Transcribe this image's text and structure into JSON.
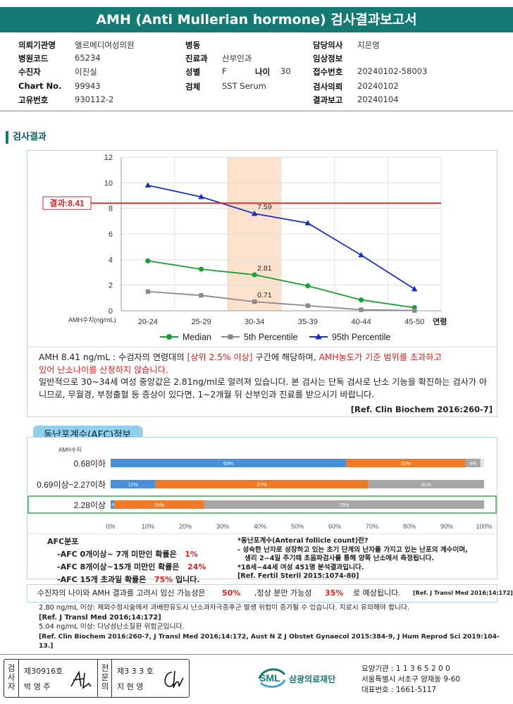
{
  "report": {
    "title": "AMH (Anti Mullerian hormone) 검사결과보고서"
  },
  "info": {
    "institution_label": "의뢰기관명",
    "institution": "엘르메디여성의원",
    "hospital_code_label": "병원코드",
    "hospital_code": "65234",
    "patient_label": "수진자",
    "patient": "이진실",
    "chart_label": "Chart No.",
    "chart_no": "99943",
    "unique_label": "고유번호",
    "unique_no": "930112-2",
    "ward_label": "병동",
    "ward": "",
    "dept_label": "진료과",
    "dept": "산부인과",
    "sex_label": "성별",
    "sex": "F",
    "age_label": "나이",
    "age": "30",
    "specimen_label": "검체",
    "specimen": "SST Serum",
    "doctor_label": "담당의사",
    "doctor": "지은영",
    "clinical_label": "임상정보",
    "clinical": "",
    "receipt_label": "접수번호",
    "receipt_no": "20240102-58003",
    "request_label": "검사의뢰",
    "request_date": "20240102",
    "result_label": "결과보고",
    "result_date": "20240104"
  },
  "results": {
    "section_title": "검사결과"
  },
  "chart_data": {
    "type": "line",
    "categories": [
      "20-24",
      "25-29",
      "30-34",
      "35-39",
      "40-44",
      "45-50"
    ],
    "x_axis_suffix": "연령",
    "y_unit_label": "AMH수치(ng/mL)",
    "ylim": [
      0,
      12
    ],
    "yticks": [
      0,
      2,
      4,
      6,
      8,
      10,
      12
    ],
    "grid": true,
    "legend_position": "bottom",
    "highlight_category": "30-34",
    "result_line": {
      "value": 8.41,
      "label": "결과:8.41",
      "color": "#dd2222"
    },
    "series": [
      {
        "name": "Median",
        "values": [
          3.9,
          3.25,
          2.81,
          1.95,
          0.85,
          0.25
        ],
        "color": "#1aa03a",
        "marker": "circle",
        "label_index": 2,
        "label": "2.81"
      },
      {
        "name": "5th Percentile",
        "values": [
          1.5,
          1.2,
          0.71,
          0.4,
          0.08,
          0.02
        ],
        "color": "#8a8a8a",
        "marker": "square",
        "label_index": 2,
        "label": "0.71"
      },
      {
        "name": "95th Percentile",
        "values": [
          9.8,
          8.9,
          7.59,
          6.85,
          4.35,
          1.7
        ],
        "color": "#1a2fbf",
        "marker": "triangle",
        "label_index": 2,
        "label": "7.59"
      }
    ]
  },
  "interpretation": {
    "line1_prefix": "AMH  8.41 ng/mL : 수검자의 연령대의 ",
    "line1_red1": "[상위 2.5% 이상]",
    "line1_mid": " 구간에 해당하며, ",
    "line1_red2": "AMH농도가 기준 범위를 초과하고",
    "line2_red": "있어 난소나이를 산정하지 않습니다.",
    "para2": "일반적으로 30~34세 여성 중앙값은 2.81ng/ml로 알려져 있습니다. 본 검사는 단독 검사로 난소 기능을 확진하는 검사가 아니므로, 무월경, 부정출혈 등 증상이 있다면, 1~2개월 뒤 산부인과 진료를 받으시기 바랍니다.",
    "ref": "[Ref. Clin Biochem 2016:260-7]"
  },
  "afc": {
    "badge": "동난포계수(AFC)정보",
    "amh_label": "AMH수치",
    "rows": [
      {
        "label": "0.68이하",
        "segments": [
          {
            "value": 63,
            "label": "63%",
            "color": "#4a90d9"
          },
          {
            "value": 32,
            "label": "32%",
            "color": "#f07a26"
          },
          {
            "value": 4,
            "label": "4%",
            "color": "#a6a6a6"
          }
        ]
      },
      {
        "label": "0.69이상~2.27이하",
        "segments": [
          {
            "value": 12,
            "label": "12%",
            "color": "#4a90d9"
          },
          {
            "value": 57,
            "label": "57%",
            "color": "#f07a26"
          },
          {
            "value": 31,
            "label": "31%",
            "color": "#a6a6a6"
          }
        ]
      },
      {
        "label": "2.28이상",
        "segments": [
          {
            "value": 1,
            "label": "1%",
            "color": "#4a90d9"
          },
          {
            "value": 24,
            "label": "24%",
            "color": "#f07a26"
          },
          {
            "value": 75,
            "label": "75%",
            "color": "#a6a6a6"
          }
        ],
        "highlight": true
      }
    ],
    "axis_ticks": [
      "0%",
      "10%",
      "20%",
      "30%",
      "40%",
      "50%",
      "60%",
      "70%",
      "80%",
      "90%",
      "100%"
    ],
    "dist_title": "AFC분포",
    "dist": [
      {
        "text": "-AFC  0개이상~ 7개 미만인 확률은",
        "pct": "1%"
      },
      {
        "text": "-AFC  8개이상~15개 미만인 확률은",
        "pct": "24%"
      },
      {
        "text": "-AFC  15개 초과일 확률은",
        "pct": "75%",
        "suffix": " 입니다."
      }
    ],
    "def_title": "*동난포계수(Anteral follicle count)란?",
    "def_line1": "- 성숙한 난자로 성장하고 있는 초기 단계의 난자를 가지고 있는 난포의 계수이며,",
    "def_line2": "생리 2~4일 주기때 초음파검사를 통해 양쪽 난소에서 측정됩니다.",
    "def_line3": "*18세~44세 여성 451명 분석결과입니다.",
    "def_ref": "[Ref. Fertil Steril 2015:1074-80]"
  },
  "summary": {
    "prefix": "수진자의 나이와 AMH 결과를 고려시 임신 가능성은",
    "preg": "50%",
    "mid": ",정상 분만 가능성",
    "birth": "35%",
    "suffix": "로 예상됩니다.",
    "ref": "[Ref. J Transl Med 2016;14:172]"
  },
  "notes": {
    "n1": "2.80  ng/mL  이상: 체외수정시술에서 과배란유도시 난소과자극증후군 발생 위험이 증가될 수 있습니다. 치료시 유의해야 합니다.",
    "n1_ref": "[Ref. J Transl Med 2016;14:172]",
    "n2": "5.04  ng/mL  이상: 다낭성난소질환 위험군입니다.",
    "n2_ref": "[Ref. Clin Biochem 2016:260-7, J Transl Med 2016;14:172, Aust N Z J Obstet Gynaecol 2015:384-9, J Hum Reprod Sci 2019:104-13.]"
  },
  "footer": {
    "inspector_label": "검사자",
    "inspector_no": "제30916호",
    "inspector_name": "박 영 주",
    "specialist_label": "전문의",
    "specialist_no": "제3 3 3 호",
    "specialist_name": "지 현 영",
    "logo_text": "SML",
    "org_name": "삼광의료재단",
    "care_no": "요양기관 : 1 1 3 6 5 2 0 0",
    "address": "서울특별시 서초구 양재동 9-60",
    "phone": "대표번호 : 1661-5117",
    "logo_color": "#147a73"
  }
}
